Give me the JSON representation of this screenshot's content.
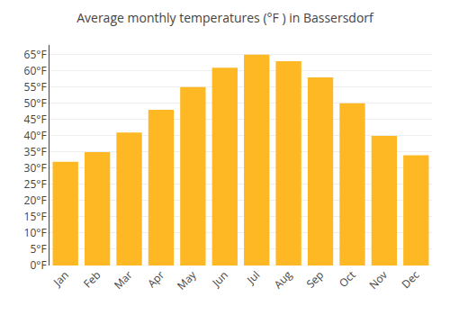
{
  "chart_data": {
    "type": "bar",
    "title": "Average monthly temperatures (°F ) in Bassersdorf",
    "categories": [
      "Jan",
      "Feb",
      "Mar",
      "Apr",
      "May",
      "Jun",
      "Jul",
      "Aug",
      "Sep",
      "Oct",
      "Nov",
      "Dec"
    ],
    "values": [
      32,
      35,
      41,
      48,
      55,
      61,
      65,
      63,
      58,
      50,
      40,
      34
    ],
    "color": "#FDB824",
    "ylim": [
      0,
      68
    ],
    "yticks": [
      {
        "value": 0,
        "label": "0°F"
      },
      {
        "value": 5,
        "label": "5°F"
      },
      {
        "value": 10,
        "label": "10°F"
      },
      {
        "value": 15,
        "label": "15°F"
      },
      {
        "value": 20,
        "label": "20°F"
      },
      {
        "value": 25,
        "label": "25°F"
      },
      {
        "value": 30,
        "label": "30°F"
      },
      {
        "value": 35,
        "label": "35°F"
      },
      {
        "value": 40,
        "label": "40°F"
      },
      {
        "value": 45,
        "label": "45°F"
      },
      {
        "value": 50,
        "label": "50°F"
      },
      {
        "value": 55,
        "label": "55°F"
      },
      {
        "value": 60,
        "label": "60°F"
      },
      {
        "value": 65,
        "label": "65°F"
      }
    ],
    "grid": true
  }
}
